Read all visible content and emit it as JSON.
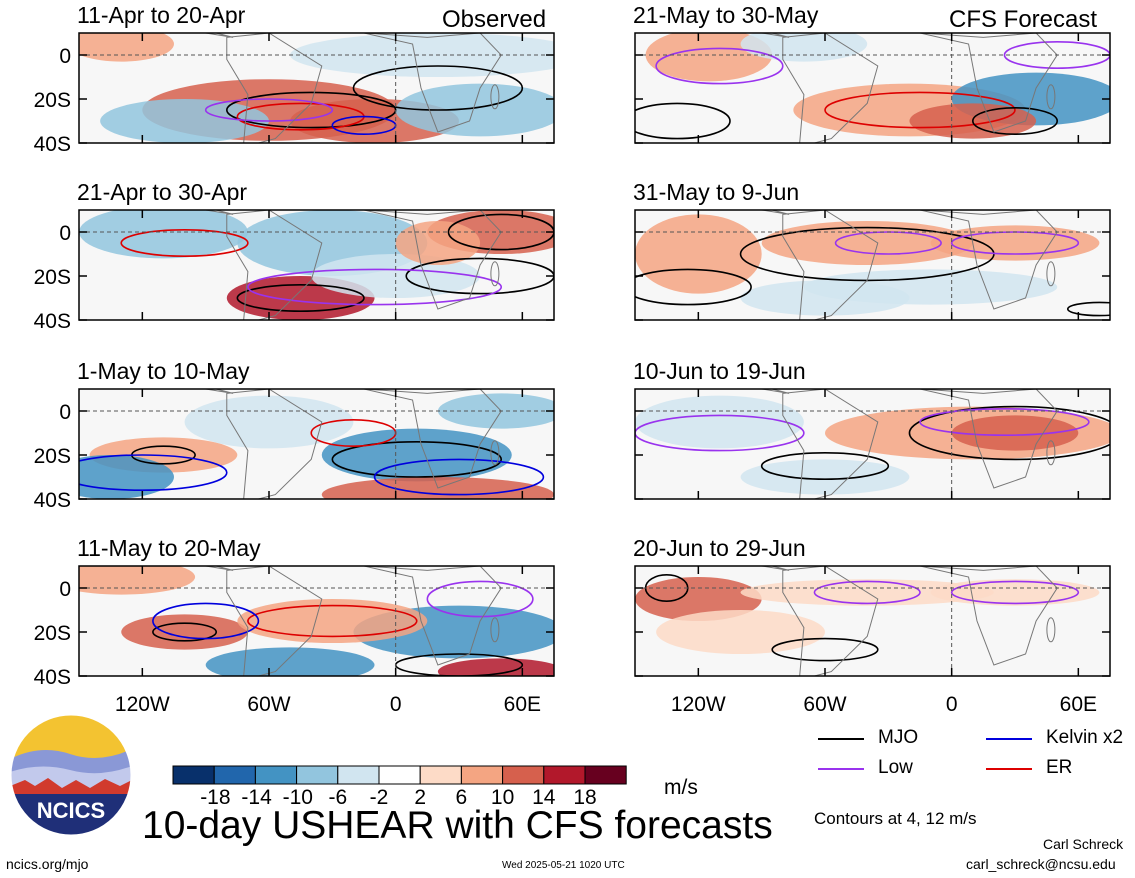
{
  "figure": {
    "main_title": "10-day USHEAR with CFS forecasts",
    "left_header": "Observed",
    "right_header": "CFS Forecast",
    "footer_url": "ncics.org/mjo",
    "timestamp": "Wed 2025-05-21 1020 UTC",
    "author": "Carl Schreck",
    "email": "carl_schreck@ncsu.edu",
    "contour_note": "Contours at 4, 12 m/s",
    "logo_text": "NCICS"
  },
  "chart_data": [
    {
      "type": "heatmap",
      "title": "11-Apr to 20-Apr",
      "panel_group": "Observed",
      "xticks": [
        "120W",
        "60W",
        "0",
        "60E"
      ],
      "yticks": [
        "0",
        "20S",
        "40S"
      ]
    },
    {
      "type": "heatmap",
      "title": "21-Apr to 30-Apr",
      "panel_group": "Observed",
      "xticks": [
        "120W",
        "60W",
        "0",
        "60E"
      ],
      "yticks": [
        "0",
        "20S",
        "40S"
      ]
    },
    {
      "type": "heatmap",
      "title": "1-May to 10-May",
      "panel_group": "Observed",
      "xticks": [
        "120W",
        "60W",
        "0",
        "60E"
      ],
      "yticks": [
        "0",
        "20S",
        "40S"
      ]
    },
    {
      "type": "heatmap",
      "title": "11-May to 20-May",
      "panel_group": "Observed",
      "xticks": [
        "120W",
        "60W",
        "0",
        "60E"
      ],
      "yticks": [
        "0",
        "20S",
        "40S"
      ]
    },
    {
      "type": "heatmap",
      "title": "21-May to 30-May",
      "panel_group": "CFS Forecast",
      "xticks": [
        "120W",
        "60W",
        "0",
        "60E"
      ],
      "yticks": [
        "0",
        "20S",
        "40S"
      ]
    },
    {
      "type": "heatmap",
      "title": "31-May to 9-Jun",
      "panel_group": "CFS Forecast",
      "xticks": [
        "120W",
        "60W",
        "0",
        "60E"
      ],
      "yticks": [
        "0",
        "20S",
        "40S"
      ]
    },
    {
      "type": "heatmap",
      "title": "10-Jun to 19-Jun",
      "panel_group": "CFS Forecast",
      "xticks": [
        "120W",
        "60W",
        "0",
        "60E"
      ],
      "yticks": [
        "0",
        "20S",
        "40S"
      ]
    },
    {
      "type": "heatmap",
      "title": "20-Jun to 29-Jun",
      "panel_group": "CFS Forecast",
      "xticks": [
        "120W",
        "60W",
        "0",
        "60E"
      ],
      "yticks": [
        "0",
        "20S",
        "40S"
      ]
    }
  ],
  "colorbar": {
    "unit": "m/s",
    "labels": [
      "-18",
      "-14",
      "-10",
      "-6",
      "-2",
      "2",
      "6",
      "10",
      "14",
      "18"
    ],
    "colors": [
      "#08306b",
      "#2166ac",
      "#4393c3",
      "#92c5de",
      "#d1e5f0",
      "#ffffff",
      "#fddbc7",
      "#f4a582",
      "#d6604d",
      "#b2182b",
      "#67001f"
    ]
  },
  "legend": [
    {
      "label": "MJO",
      "color": "#000000"
    },
    {
      "label": "Kelvin x2",
      "color": "#0000dd"
    },
    {
      "label": "Low",
      "color": "#9933ee"
    },
    {
      "label": "ER",
      "color": "#dd0000"
    }
  ]
}
